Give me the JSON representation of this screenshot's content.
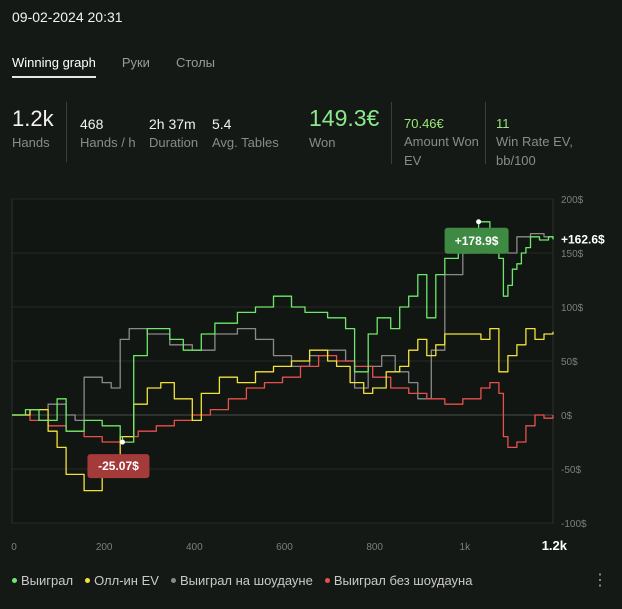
{
  "datetime": "09-02-2024 20:31",
  "tabs": [
    {
      "label": "Winning graph",
      "active": true
    },
    {
      "label": "Руки",
      "active": false
    },
    {
      "label": "Столы",
      "active": false
    }
  ],
  "stats": {
    "hands": {
      "value": "1.2k",
      "label": "Hands"
    },
    "hands_per_hour": {
      "value": "468",
      "label": "Hands / h"
    },
    "duration": {
      "value": "2h 37m",
      "label": "Duration"
    },
    "avg_tables": {
      "value": "5.4",
      "label": "Avg. Tables"
    },
    "won": {
      "value": "149.3€",
      "label": "Won"
    },
    "amount_won_ev": {
      "value": "70.46€",
      "label_1": "Amount Won",
      "label_2": "EV"
    },
    "win_rate_ev": {
      "value": "11",
      "label_1": "Win Rate EV,",
      "label_2": "bb/100"
    }
  },
  "colors": {
    "background": "#151916",
    "won": "#6ee86a",
    "allin_ev": "#f1e23a",
    "showdown": "#8a8a8a",
    "no_showdown": "#e8504c",
    "badge_positive": "#3f8a43",
    "badge_negative": "#a53a3a"
  },
  "chart_data": {
    "type": "line",
    "xlim": [
      0,
      1200
    ],
    "ylim": [
      -100,
      200
    ],
    "x_ticks": [
      "0",
      "200",
      "400",
      "600",
      "800",
      "1k",
      "1.2k"
    ],
    "x_tick_values": [
      0,
      200,
      400,
      600,
      800,
      1000,
      1200
    ],
    "y_ticks": [
      "200$",
      "150$",
      "100$",
      "50$",
      "0$",
      "-50$",
      "-100$"
    ],
    "y_tick_values": [
      200,
      150,
      100,
      50,
      0,
      -50,
      -100
    ],
    "end_value_label": "+162.6$",
    "max_label": "+178.9$",
    "max_point": [
      1035,
      178.9
    ],
    "min_label": "-25.07$",
    "min_point": [
      245,
      -25.07
    ],
    "series": [
      {
        "name": "Выиграл",
        "color": "#6ee86a",
        "x": [
          0,
          30,
          60,
          100,
          120,
          160,
          200,
          240,
          245,
          270,
          300,
          350,
          380,
          420,
          450,
          500,
          540,
          580,
          620,
          650,
          700,
          740,
          760,
          790,
          810,
          840,
          860,
          880,
          900,
          920,
          940,
          960,
          990,
          1010,
          1035,
          1060,
          1080,
          1090,
          1100,
          1110,
          1120,
          1130,
          1140,
          1150,
          1170,
          1190,
          1200
        ],
        "y": [
          0,
          5,
          -5,
          15,
          -15,
          -5,
          -10,
          -20,
          -25.07,
          55,
          80,
          70,
          60,
          75,
          85,
          95,
          100,
          110,
          100,
          95,
          90,
          80,
          40,
          75,
          90,
          80,
          100,
          110,
          130,
          90,
          130,
          145,
          150,
          155,
          178.9,
          150,
          145,
          110,
          120,
          135,
          140,
          150,
          155,
          165,
          162,
          165,
          162.6
        ]
      },
      {
        "name": "Олл-ин EV",
        "color": "#f1e23a",
        "x": [
          0,
          40,
          80,
          100,
          120,
          160,
          200,
          240,
          270,
          300,
          330,
          360,
          400,
          420,
          460,
          500,
          540,
          580,
          620,
          660,
          700,
          720,
          750,
          780,
          800,
          830,
          860,
          880,
          900,
          920,
          940,
          960,
          1000,
          1040,
          1060,
          1080,
          1100,
          1120,
          1140,
          1160,
          1180,
          1200
        ],
        "y": [
          0,
          5,
          -15,
          -30,
          -55,
          -70,
          -45,
          -20,
          10,
          25,
          30,
          15,
          -5,
          20,
          35,
          30,
          40,
          45,
          50,
          60,
          50,
          45,
          30,
          20,
          25,
          40,
          45,
          60,
          70,
          55,
          65,
          75,
          75,
          70,
          80,
          40,
          55,
          65,
          80,
          70,
          75,
          77
        ]
      },
      {
        "name": "Выиграл на шоудауне",
        "color": "#8a8a8a",
        "x": [
          0,
          40,
          80,
          120,
          140,
          160,
          200,
          220,
          240,
          260,
          300,
          350,
          400,
          450,
          500,
          540,
          580,
          620,
          660,
          700,
          740,
          760,
          790,
          820,
          850,
          880,
          900,
          930,
          960,
          1000,
          1040,
          1060,
          1080,
          1100,
          1120,
          1150,
          1180,
          1200
        ],
        "y": [
          0,
          5,
          10,
          0,
          -5,
          35,
          30,
          25,
          70,
          80,
          75,
          65,
          60,
          75,
          80,
          70,
          55,
          45,
          55,
          60,
          50,
          25,
          45,
          55,
          40,
          30,
          15,
          60,
          130,
          150,
          155,
          160,
          155,
          150,
          165,
          168,
          165,
          163
        ]
      },
      {
        "name": "Выиграл без шоудауна",
        "color": "#e8504c",
        "x": [
          0,
          40,
          80,
          120,
          160,
          200,
          240,
          280,
          320,
          360,
          400,
          440,
          480,
          520,
          560,
          600,
          640,
          680,
          720,
          760,
          800,
          840,
          880,
          920,
          960,
          1000,
          1040,
          1060,
          1080,
          1090,
          1100,
          1120,
          1140,
          1160,
          1180,
          1200
        ],
        "y": [
          0,
          -5,
          -10,
          -15,
          -20,
          -25,
          -20,
          -15,
          -10,
          -5,
          0,
          5,
          15,
          25,
          30,
          35,
          45,
          55,
          50,
          45,
          35,
          25,
          20,
          15,
          10,
          15,
          25,
          30,
          20,
          -20,
          -30,
          -25,
          -10,
          0,
          -3,
          0
        ]
      }
    ]
  },
  "legend": [
    {
      "label": "Выиграл",
      "color": "#6ee86a"
    },
    {
      "label": "Олл-ин EV",
      "color": "#f1e23a"
    },
    {
      "label": "Выиграл на шоудауне",
      "color": "#8a8a8a"
    },
    {
      "label": "Выиграл без шоудауна",
      "color": "#e8504c"
    }
  ],
  "more_icon": "⋮"
}
